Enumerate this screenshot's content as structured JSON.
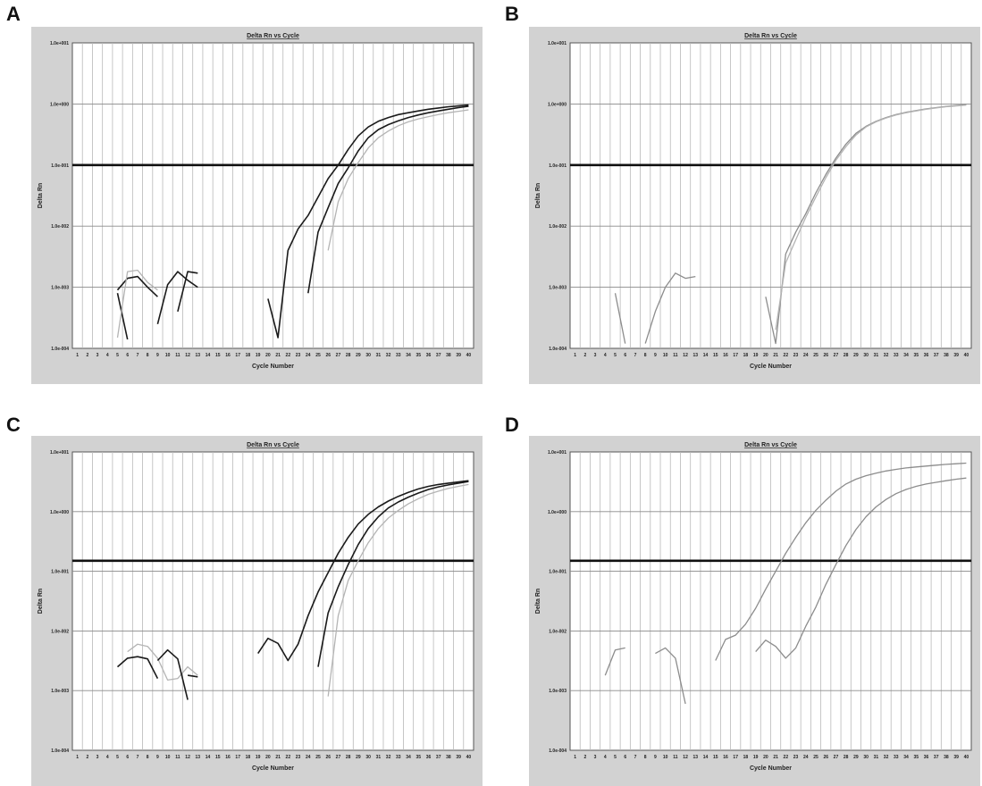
{
  "colors": {
    "black": "#1a1a1a",
    "gray": "#8c8c8c",
    "light": "#b4b4b4",
    "plot_bg": "#ffffff",
    "frame_bg": "#d2d2d2"
  },
  "panels": [
    {
      "letter": "A",
      "chart_data": {
        "type": "line",
        "title": "Delta Rn vs Cycle",
        "xlabel": "Cycle Number",
        "ylabel": "Delta Rn",
        "y_scale": "log",
        "ylim": [
          0.0001,
          10
        ],
        "y_ticks": [
          "1.0e-004",
          "1.0e-003",
          "1.0e-002",
          "1.0e-001",
          "1.0e+000",
          "1.0e+001"
        ],
        "x_ticks": [
          "1",
          "2",
          "3",
          "4",
          "5",
          "6",
          "7",
          "8",
          "9",
          "10",
          "11",
          "12",
          "13",
          "14",
          "15",
          "16",
          "17",
          "18",
          "19",
          "20",
          "21",
          "22",
          "23",
          "24",
          "25",
          "26",
          "27",
          "28",
          "29",
          "30",
          "31",
          "32",
          "33",
          "34",
          "35",
          "36",
          "37",
          "38",
          "39",
          "40"
        ],
        "threshold": 0.1,
        "grid": true,
        "series": [
          {
            "color": "black",
            "x": [
              5,
              6,
              7,
              8,
              9
            ],
            "y": [
              0.0009,
              0.0014,
              0.0015,
              0.001,
              0.0007
            ]
          },
          {
            "color": "black",
            "x": [
              5,
              6
            ],
            "y": [
              0.0008,
              0.00014
            ]
          },
          {
            "color": "light",
            "x": [
              5,
              6,
              7,
              8,
              9
            ],
            "y": [
              0.00015,
              0.0018,
              0.0019,
              0.0012,
              0.0009
            ]
          },
          {
            "color": "black",
            "x": [
              9,
              10,
              11,
              12,
              13
            ],
            "y": [
              0.00025,
              0.0011,
              0.0018,
              0.0013,
              0.001
            ]
          },
          {
            "color": "black",
            "x": [
              11,
              12,
              13
            ],
            "y": [
              0.0004,
              0.0018,
              0.0017
            ]
          },
          {
            "color": "black",
            "x": [
              20,
              21,
              22,
              23,
              24,
              25,
              26,
              27,
              28,
              29,
              30,
              31,
              32,
              33,
              34,
              35,
              36,
              37,
              38,
              39,
              40
            ],
            "y": [
              0.00065,
              0.00015,
              0.004,
              0.009,
              0.015,
              0.03,
              0.06,
              0.1,
              0.18,
              0.3,
              0.42,
              0.52,
              0.6,
              0.67,
              0.72,
              0.77,
              0.82,
              0.86,
              0.9,
              0.93,
              0.96
            ]
          },
          {
            "color": "black",
            "x": [
              24,
              25,
              26,
              27,
              28,
              29,
              30,
              31,
              32,
              33,
              34,
              35,
              36,
              37,
              38,
              39,
              40
            ],
            "y": [
              0.0008,
              0.008,
              0.02,
              0.05,
              0.09,
              0.17,
              0.28,
              0.38,
              0.46,
              0.53,
              0.6,
              0.66,
              0.72,
              0.77,
              0.82,
              0.87,
              0.92
            ]
          },
          {
            "color": "light",
            "x": [
              26,
              27,
              28,
              29,
              30,
              31,
              32,
              33,
              34,
              35,
              36,
              37,
              38,
              39,
              40
            ],
            "y": [
              0.004,
              0.025,
              0.06,
              0.11,
              0.19,
              0.28,
              0.36,
              0.44,
              0.51,
              0.57,
              0.62,
              0.67,
              0.72,
              0.76,
              0.8
            ]
          }
        ]
      }
    },
    {
      "letter": "B",
      "chart_data": {
        "type": "line",
        "title": "Delta Rn vs Cycle",
        "xlabel": "Cycle Number",
        "ylabel": "Delta Rn",
        "y_scale": "log",
        "ylim": [
          0.0001,
          10
        ],
        "y_ticks": [
          "1.0e-004",
          "1.0e-003",
          "1.0e-002",
          "1.0e-001",
          "1.0e+000",
          "1.0e+001"
        ],
        "x_ticks": [
          "1",
          "2",
          "3",
          "4",
          "5",
          "6",
          "7",
          "8",
          "9",
          "10",
          "11",
          "12",
          "13",
          "14",
          "15",
          "16",
          "17",
          "18",
          "19",
          "20",
          "21",
          "22",
          "23",
          "24",
          "25",
          "26",
          "27",
          "28",
          "29",
          "30",
          "31",
          "32",
          "33",
          "34",
          "35",
          "36",
          "37",
          "38",
          "39",
          "40"
        ],
        "threshold": 0.1,
        "grid": true,
        "series": [
          {
            "color": "gray",
            "x": [
              5,
              6
            ],
            "y": [
              0.0008,
              0.00012
            ]
          },
          {
            "color": "gray",
            "x": [
              8,
              9,
              10,
              11,
              12,
              13
            ],
            "y": [
              0.00012,
              0.0004,
              0.001,
              0.0017,
              0.0014,
              0.0015
            ]
          },
          {
            "color": "gray",
            "x": [
              20,
              21,
              22,
              23,
              24,
              25,
              26,
              27,
              28,
              29,
              30,
              31,
              32,
              33,
              34,
              35,
              36,
              37,
              38,
              39,
              40
            ],
            "y": [
              0.0007,
              0.00012,
              0.0035,
              0.008,
              0.016,
              0.035,
              0.07,
              0.13,
              0.22,
              0.33,
              0.43,
              0.52,
              0.6,
              0.67,
              0.73,
              0.78,
              0.83,
              0.87,
              0.91,
              0.94,
              0.97
            ]
          },
          {
            "color": "light",
            "x": [
              21,
              22,
              23,
              24,
              25,
              26,
              27,
              28,
              29,
              30,
              31,
              32,
              33,
              34,
              35,
              36,
              37,
              38,
              39,
              40
            ],
            "y": [
              0.0002,
              0.0025,
              0.006,
              0.014,
              0.03,
              0.062,
              0.12,
              0.2,
              0.31,
              0.42,
              0.51,
              0.59,
              0.66,
              0.72,
              0.77,
              0.82,
              0.86,
              0.9,
              0.93,
              0.96
            ]
          }
        ]
      }
    },
    {
      "letter": "C",
      "chart_data": {
        "type": "line",
        "title": "Delta Rn vs Cycle",
        "xlabel": "Cycle Number",
        "ylabel": "Delta Rn",
        "y_scale": "log",
        "ylim": [
          0.0001,
          10
        ],
        "y_ticks": [
          "1.0e-004",
          "1.0e-003",
          "1.0e-002",
          "1.0e-001",
          "1.0e+000",
          "1.0e+001"
        ],
        "x_ticks": [
          "1",
          "2",
          "3",
          "4",
          "5",
          "6",
          "7",
          "8",
          "9",
          "10",
          "11",
          "12",
          "13",
          "14",
          "15",
          "16",
          "17",
          "18",
          "19",
          "20",
          "21",
          "22",
          "23",
          "24",
          "25",
          "26",
          "27",
          "28",
          "29",
          "30",
          "31",
          "32",
          "33",
          "34",
          "35",
          "36",
          "37",
          "38",
          "39",
          "40"
        ],
        "threshold": 0.15,
        "grid": true,
        "series": [
          {
            "color": "black",
            "x": [
              5,
              6,
              7,
              8,
              9
            ],
            "y": [
              0.0025,
              0.0035,
              0.0037,
              0.0034,
              0.0016
            ]
          },
          {
            "color": "light",
            "x": [
              6,
              7,
              8,
              9,
              10,
              11,
              12,
              13
            ],
            "y": [
              0.0045,
              0.006,
              0.0055,
              0.0035,
              0.0015,
              0.0016,
              0.0025,
              0.0018
            ]
          },
          {
            "color": "black",
            "x": [
              9,
              10,
              11,
              12
            ],
            "y": [
              0.0032,
              0.0048,
              0.0034,
              0.0007
            ]
          },
          {
            "color": "black",
            "x": [
              12,
              13
            ],
            "y": [
              0.0018,
              0.0017
            ]
          },
          {
            "color": "black",
            "x": [
              19,
              20,
              21,
              22,
              23,
              24,
              25,
              26,
              27,
              28,
              29,
              30,
              31,
              32,
              33,
              34,
              35,
              36,
              37,
              38,
              39,
              40
            ],
            "y": [
              0.0042,
              0.0075,
              0.0062,
              0.0032,
              0.006,
              0.018,
              0.045,
              0.095,
              0.2,
              0.37,
              0.62,
              0.9,
              1.2,
              1.5,
              1.8,
              2.1,
              2.4,
              2.65,
              2.85,
              3.0,
              3.15,
              3.3
            ]
          },
          {
            "color": "black",
            "x": [
              25,
              26,
              27,
              28,
              29,
              30,
              31,
              32,
              33,
              34,
              35,
              36,
              37,
              38,
              39,
              40
            ],
            "y": [
              0.0025,
              0.02,
              0.055,
              0.13,
              0.28,
              0.52,
              0.82,
              1.15,
              1.45,
              1.75,
              2.05,
              2.35,
              2.6,
              2.8,
              3.0,
              3.2
            ]
          },
          {
            "color": "light",
            "x": [
              26,
              27,
              28,
              29,
              30,
              31,
              32,
              33,
              34,
              35,
              36,
              37,
              38,
              39,
              40
            ],
            "y": [
              0.0008,
              0.018,
              0.07,
              0.15,
              0.3,
              0.52,
              0.78,
              1.05,
              1.35,
              1.65,
              1.95,
              2.2,
              2.45,
              2.65,
              2.85
            ]
          }
        ]
      }
    },
    {
      "letter": "D",
      "chart_data": {
        "type": "line",
        "title": "Delta Rn vs Cycle",
        "xlabel": "Cycle Number",
        "ylabel": "Delta Rn",
        "y_scale": "log",
        "ylim": [
          0.0001,
          10
        ],
        "y_ticks": [
          "1.0e-004",
          "1.0e-003",
          "1.0e-002",
          "1.0e-001",
          "1.0e+000",
          "1.0e+001"
        ],
        "x_ticks": [
          "1",
          "2",
          "3",
          "4",
          "5",
          "6",
          "7",
          "8",
          "9",
          "10",
          "11",
          "12",
          "13",
          "14",
          "15",
          "16",
          "17",
          "18",
          "19",
          "20",
          "21",
          "22",
          "23",
          "24",
          "25",
          "26",
          "27",
          "28",
          "29",
          "30",
          "31",
          "32",
          "33",
          "34",
          "35",
          "36",
          "37",
          "38",
          "39",
          "40"
        ],
        "threshold": 0.15,
        "grid": true,
        "series": [
          {
            "color": "gray",
            "x": [
              4,
              5,
              6
            ],
            "y": [
              0.0018,
              0.0048,
              0.0052
            ]
          },
          {
            "color": "gray",
            "x": [
              9,
              10,
              11,
              12
            ],
            "y": [
              0.0042,
              0.0052,
              0.0035,
              0.0006
            ]
          },
          {
            "color": "gray",
            "x": [
              15,
              16,
              17,
              18,
              19,
              20,
              21,
              22,
              23,
              24,
              25,
              26,
              27,
              28,
              29,
              30,
              31,
              32,
              33,
              34,
              35,
              36,
              37,
              38,
              39,
              40
            ],
            "y": [
              0.0032,
              0.0072,
              0.0085,
              0.013,
              0.024,
              0.05,
              0.1,
              0.2,
              0.37,
              0.65,
              1.05,
              1.55,
              2.2,
              2.9,
              3.5,
              4.0,
              4.4,
              4.8,
              5.1,
              5.4,
              5.6,
              5.8,
              6.0,
              6.2,
              6.35,
              6.5
            ]
          },
          {
            "color": "gray",
            "x": [
              19,
              20,
              21,
              22,
              23,
              24,
              25,
              26,
              27,
              28,
              29,
              30,
              31,
              32,
              33,
              34,
              35,
              36,
              37,
              38,
              39,
              40
            ],
            "y": [
              0.0045,
              0.007,
              0.0055,
              0.0035,
              0.0052,
              0.012,
              0.025,
              0.06,
              0.13,
              0.27,
              0.5,
              0.82,
              1.2,
              1.6,
              2.0,
              2.35,
              2.65,
              2.9,
              3.1,
              3.3,
              3.5,
              3.65
            ]
          }
        ]
      }
    }
  ]
}
